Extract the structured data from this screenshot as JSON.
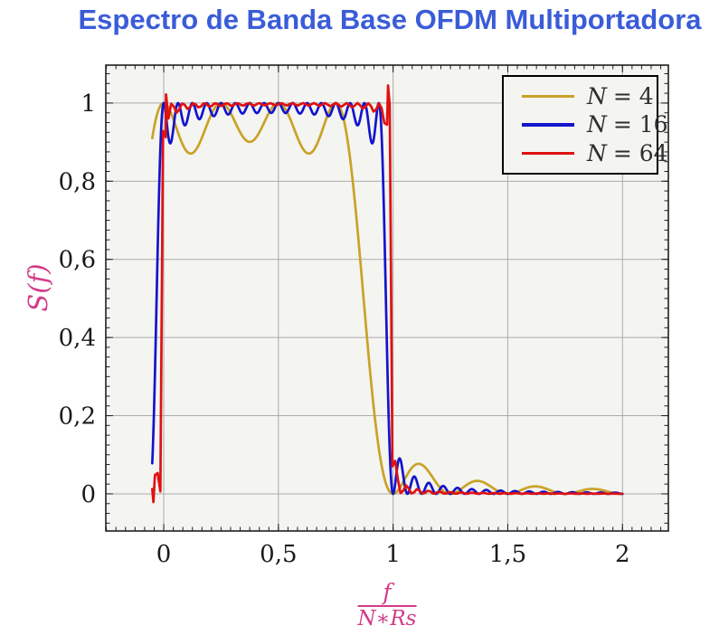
{
  "page": {
    "background": "#ffffff",
    "title_color": "#3a5cd8",
    "axis_label_color": "#d23c8a",
    "plot_bg_color": "#f4f4f1",
    "grid_color": "#ababab",
    "frame_color": "#1f1f1f"
  },
  "chart_data": {
    "type": "line",
    "title": "Espectro de Banda Base OFDM Multiportadora",
    "ylabel": "S(f)",
    "xlabel_numerator": "f",
    "xlabel_denominator": "N∗Rs",
    "xlim": [
      -0.2525,
      2.2
    ],
    "ylim": [
      -0.095,
      1.097
    ],
    "x_major_ticks": [
      0,
      0.5,
      1,
      1.5,
      2
    ],
    "x_tick_labels": [
      "0",
      "0,5",
      "1",
      "1,5",
      "2"
    ],
    "y_major_ticks": [
      0,
      0.2,
      0.4,
      0.6,
      0.8,
      1
    ],
    "y_tick_labels": [
      "0",
      "0,2",
      "0,4",
      "0,6",
      "0,8",
      "1"
    ],
    "x_minor_step": 0.0416667,
    "y_minor_step": 0.025,
    "grid": "major-only, gray lines on light-gray panel",
    "legend_position": "top-right-inside",
    "function": "S(x) = sum_{k=0}^{N-1} sinc^2(N*x - k), x = f/(N*Rs)",
    "domain": [
      -0.05,
      2.0
    ],
    "passband_level": 1.0,
    "series": [
      {
        "N": 4,
        "legend_var": "N",
        "legend_rest": "= 4",
        "color": "#c9a227",
        "sample_step": 0.002,
        "extra_points": [],
        "notes": "dips to ~0.87 between 4 subcarrier peaks, sidelobes 0.07/0.033/0.019/0.013 at x≈1.1/1.37/1.62/1.87"
      },
      {
        "N": 16,
        "legend_var": "N",
        "legend_rest": "= 16",
        "color": "#1414cc",
        "sample_step": 0.002,
        "extra_points": [],
        "notes": "16 ripples in band, edge dips ~0.88, first sidelobe ~0.08 at x≈1.03"
      },
      {
        "N": 64,
        "legend_var": "N",
        "legend_rest": "= 64",
        "color": "#e01111",
        "sample_step": 0.0117647,
        "extra_points": [
          [
            -0.045,
            -0.021
          ],
          [
            0.01,
            1.022
          ],
          [
            0.978,
            1.045
          ]
        ],
        "notes": "steep edges at 0 and 1, overshoot spikes ~1.02 and ~1.045, small undershoot hook below 0 at left"
      }
    ]
  },
  "legend_title": "",
  "ticks": {
    "major_len": 8,
    "minor_len": 4.5
  }
}
